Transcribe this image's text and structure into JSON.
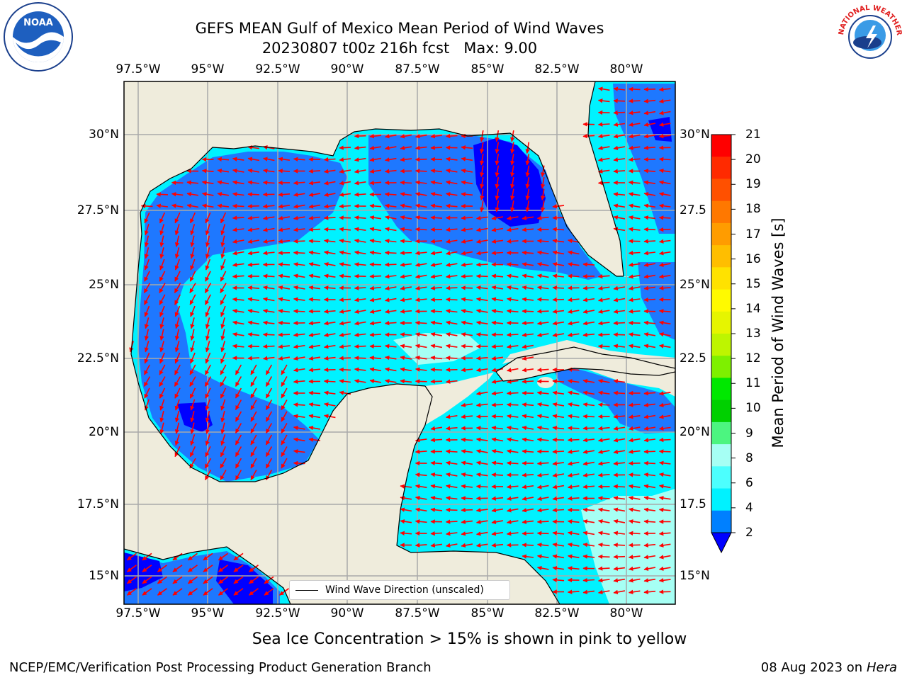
{
  "title": {
    "line1": "GEFS MEAN Gulf of Mexico Mean Period of Wind Waves",
    "line2": "20230807 t00z 216h fcst   Max: 9.00"
  },
  "lon_ticks": [
    "97.5°W",
    "95°W",
    "92.5°W",
    "90°W",
    "87.5°W",
    "85°W",
    "82.5°W",
    "80°W"
  ],
  "lat_ticks_left": [
    "30°N",
    "27.5°N",
    "25°N",
    "22.5°N",
    "20°N",
    "17.5°N",
    "15°N"
  ],
  "lat_ticks_right": [
    "30°N",
    "27.5",
    "25°N",
    "22.5",
    "20°N",
    "17.5",
    "15°N"
  ],
  "colorbar": {
    "title": "Mean Period of Wind Waves [s]",
    "labels": [
      "21",
      "20",
      "19",
      "18",
      "17",
      "16",
      "15",
      "14",
      "13",
      "12",
      "11",
      "10",
      "9",
      "8",
      "6",
      "4",
      "2"
    ],
    "colors": [
      "#ff0000",
      "#ff2a00",
      "#ff5000",
      "#ff7800",
      "#ff9c00",
      "#ffbe00",
      "#ffe200",
      "#fffa00",
      "#e6f500",
      "#bef500",
      "#7ef000",
      "#00e800",
      "#00d000",
      "#4cf580",
      "#a6fff4",
      "#4cfffe",
      "#00f2ff",
      "#0080ff"
    ],
    "underflow_color": "#0000ff"
  },
  "map_colors": {
    "land": "#efecdc",
    "water_deep": "#0000ff",
    "water_blue": "#1e78ff",
    "water_cyan": "#00f2ff",
    "water_light": "#a6fff4",
    "arrow": "#ff0000"
  },
  "legend": {
    "label": "Wind Wave Direction (unscaled)"
  },
  "footer": {
    "note": "Sea Ice Concentration > 15% is shown in pink to yellow",
    "credit": "NCEP/EMC/Verification Post Processing Product Generation Branch",
    "date": "08 Aug 2023 on",
    "host": "Hera"
  },
  "logos": {
    "noaa_text": "NOAA",
    "nws_text": "NATIONAL WEATHER SERVICE"
  }
}
